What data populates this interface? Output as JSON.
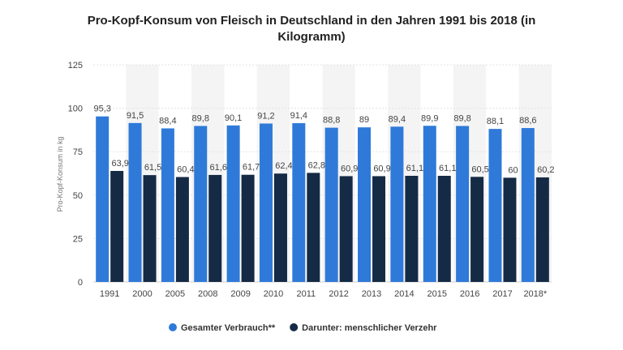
{
  "chart_data": {
    "type": "bar",
    "title_line1": "Pro-Kopf-Konsum von Fleisch in Deutschland in den Jahren 1991 bis 2018 (in",
    "title_line2": "Kilogramm)",
    "xlabel": "",
    "ylabel": "Pro-Kopf-Konsum in kg",
    "ylim": [
      0,
      125
    ],
    "yticks": [
      0,
      25,
      50,
      75,
      100,
      125
    ],
    "grid": true,
    "legend_position": "bottom",
    "categories": [
      "1991",
      "2000",
      "2005",
      "2008",
      "2009",
      "2010",
      "2011",
      "2012",
      "2013",
      "2014",
      "2015",
      "2016",
      "2017",
      "2018*"
    ],
    "series": [
      {
        "name": "Gesamter Verbrauch**",
        "color": "#2f7ad9",
        "values": [
          95.3,
          91.5,
          88.4,
          89.8,
          90.1,
          91.2,
          91.4,
          88.8,
          89,
          89.4,
          89.9,
          89.8,
          88.1,
          88.6
        ],
        "labels": [
          "95,3",
          "91,5",
          "88,4",
          "89,8",
          "90,1",
          "91,2",
          "91,4",
          "88,8",
          "89",
          "89,4",
          "89,9",
          "89,8",
          "88,1",
          "88,6"
        ]
      },
      {
        "name": "Darunter: menschlicher Verzehr",
        "color": "#152a44",
        "values": [
          63.9,
          61.5,
          60.4,
          61.6,
          61.7,
          62.4,
          62.8,
          60.9,
          60.9,
          61.1,
          61.1,
          60.5,
          60,
          60.2
        ],
        "labels": [
          "63,9",
          "61,5",
          "60,4",
          "61,6",
          "61,7",
          "62,4",
          "62,8",
          "60,9",
          "60,9",
          "61,1",
          "61,1",
          "60,5",
          "60",
          "60,2"
        ]
      }
    ]
  }
}
